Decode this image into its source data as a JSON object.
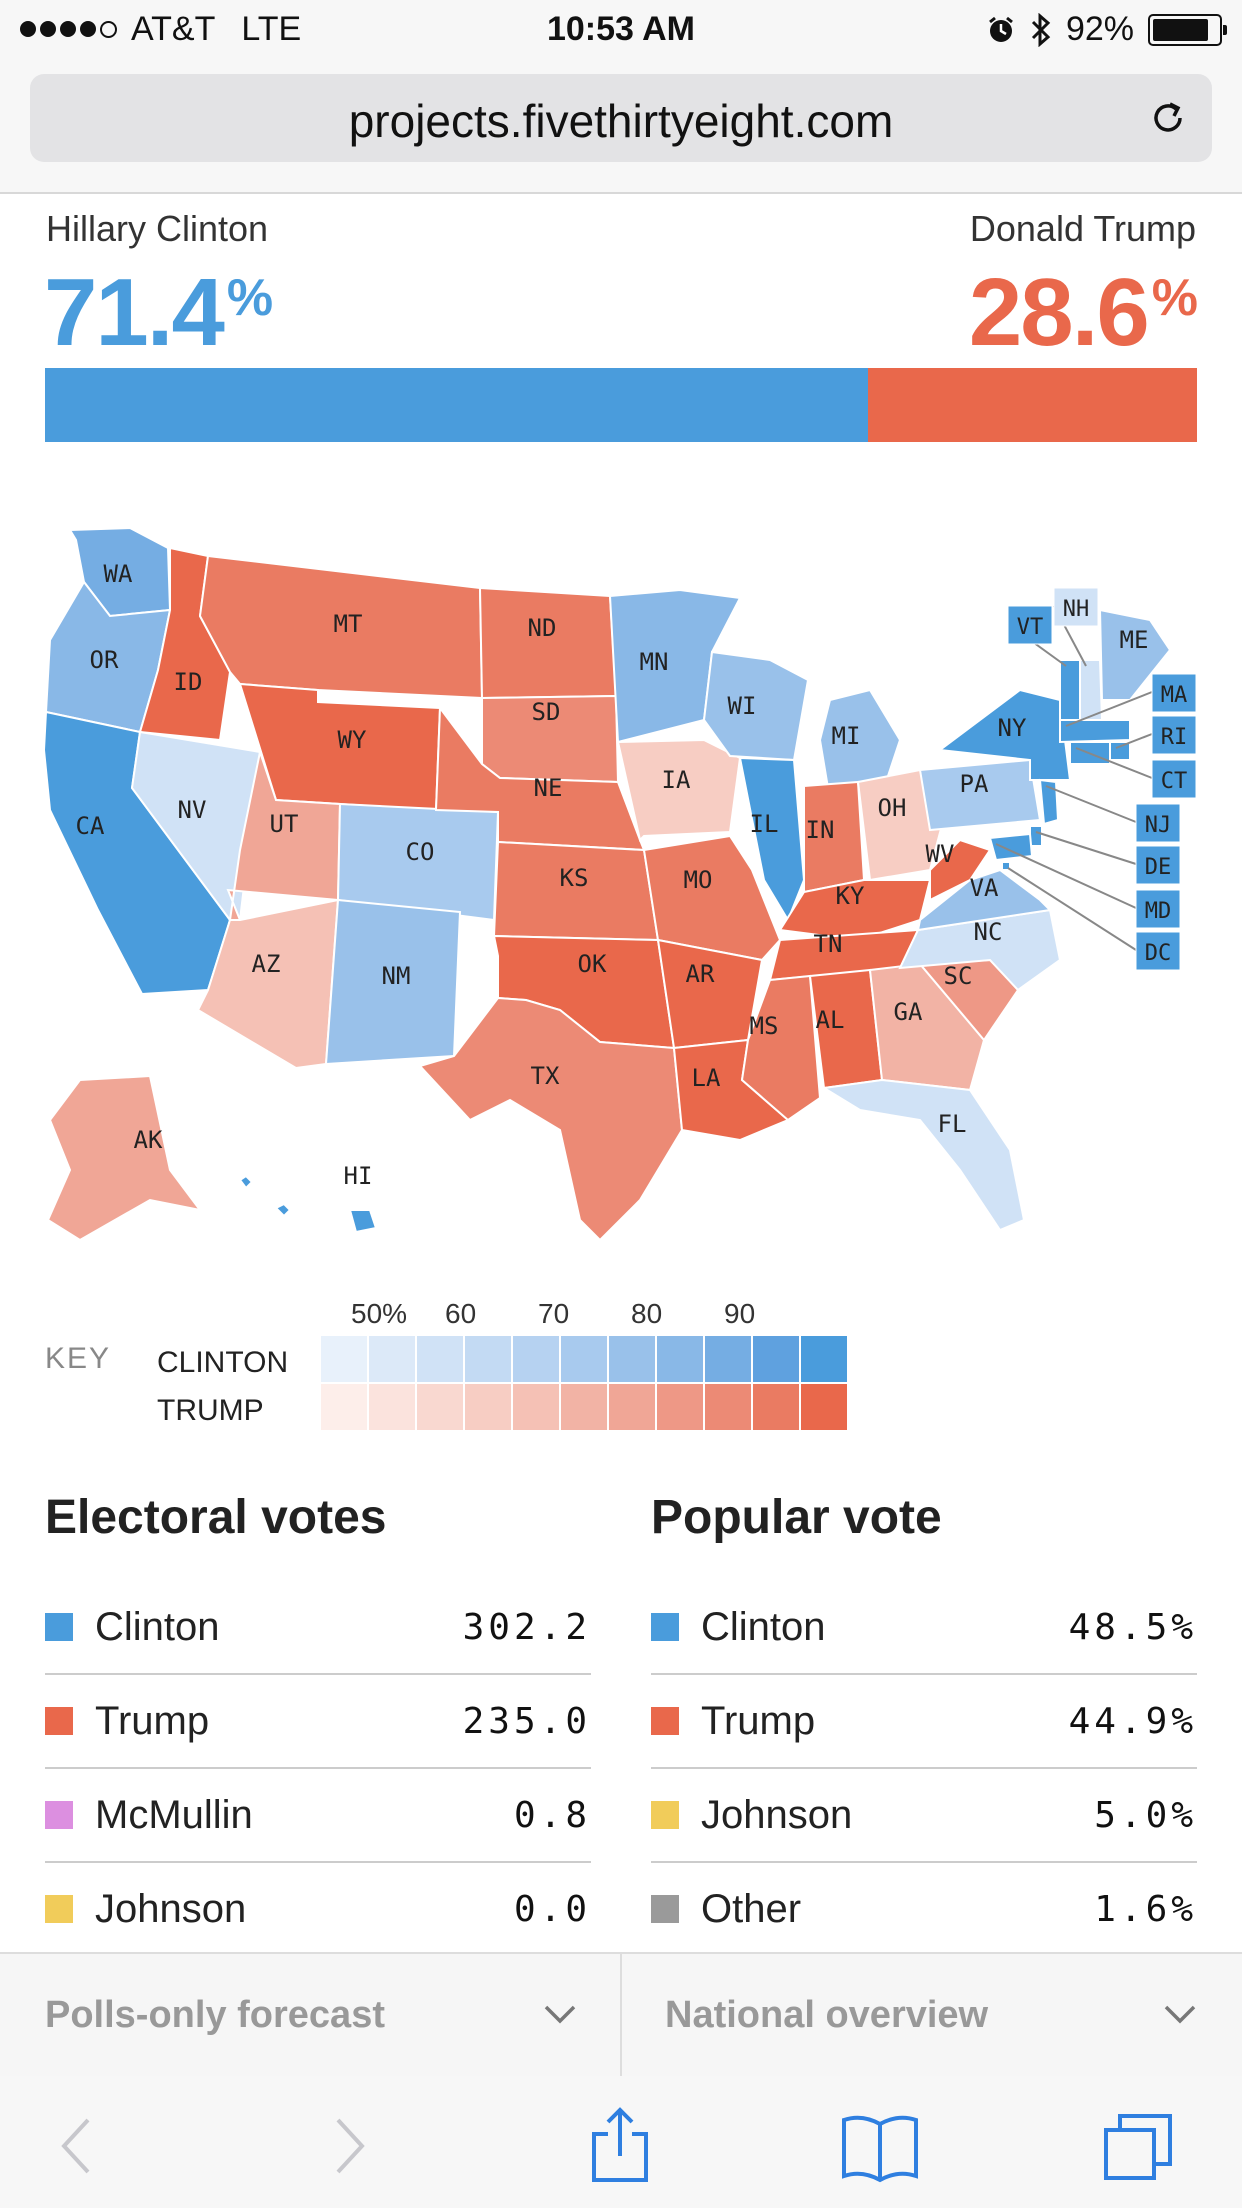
{
  "status_bar": {
    "carrier": "AT&T",
    "network": "LTE",
    "time": "10:53 AM",
    "battery": "92%",
    "battery_level": 0.92,
    "icons": [
      "signal-dots-icon",
      "alarm-icon",
      "bluetooth-icon",
      "battery-icon"
    ]
  },
  "browser": {
    "url": "projects.fivethirtyeight.com",
    "reload_icon": "reload-icon"
  },
  "forecast": {
    "left": {
      "name": "Hillary Clinton",
      "pct": "71.4",
      "pct_symbol": "%",
      "value": 0.714,
      "color": "#4a9cdc"
    },
    "right": {
      "name": "Donald Trump",
      "pct": "28.6",
      "pct_symbol": "%",
      "value": 0.286,
      "color": "#e9684b"
    }
  },
  "map": {
    "states": [
      {
        "abbr": "WA",
        "lean": "D",
        "level": 7
      },
      {
        "abbr": "OR",
        "lean": "D",
        "level": 6
      },
      {
        "abbr": "CA",
        "lean": "D",
        "level": 9
      },
      {
        "abbr": "ID",
        "lean": "R",
        "level": 9
      },
      {
        "abbr": "NV",
        "lean": "D",
        "level": 1
      },
      {
        "abbr": "MT",
        "lean": "R",
        "level": 8
      },
      {
        "abbr": "WY",
        "lean": "R",
        "level": 9
      },
      {
        "abbr": "UT",
        "lean": "R",
        "level": 5
      },
      {
        "abbr": "AZ",
        "lean": "R",
        "level": 3
      },
      {
        "abbr": "CO",
        "lean": "D",
        "level": 4
      },
      {
        "abbr": "NM",
        "lean": "D",
        "level": 5
      },
      {
        "abbr": "ND",
        "lean": "R",
        "level": 8
      },
      {
        "abbr": "SD",
        "lean": "R",
        "level": 7
      },
      {
        "abbr": "NE",
        "lean": "R",
        "level": 8
      },
      {
        "abbr": "KS",
        "lean": "R",
        "level": 8
      },
      {
        "abbr": "OK",
        "lean": "R",
        "level": 9
      },
      {
        "abbr": "TX",
        "lean": "R",
        "level": 7
      },
      {
        "abbr": "MN",
        "lean": "D",
        "level": 6
      },
      {
        "abbr": "IA",
        "lean": "R",
        "level": 2
      },
      {
        "abbr": "MO",
        "lean": "R",
        "level": 8
      },
      {
        "abbr": "AR",
        "lean": "R",
        "level": 9
      },
      {
        "abbr": "LA",
        "lean": "R",
        "level": 9
      },
      {
        "abbr": "WI",
        "lean": "D",
        "level": 5
      },
      {
        "abbr": "IL",
        "lean": "D",
        "level": 9
      },
      {
        "abbr": "MI",
        "lean": "D",
        "level": 5
      },
      {
        "abbr": "IN",
        "lean": "R",
        "level": 8
      },
      {
        "abbr": "OH",
        "lean": "R",
        "level": 2
      },
      {
        "abbr": "KY",
        "lean": "R",
        "level": 9
      },
      {
        "abbr": "TN",
        "lean": "R",
        "level": 9
      },
      {
        "abbr": "MS",
        "lean": "R",
        "level": 8
      },
      {
        "abbr": "AL",
        "lean": "R",
        "level": 9
      },
      {
        "abbr": "GA",
        "lean": "R",
        "level": 4
      },
      {
        "abbr": "FL",
        "lean": "D",
        "level": 1
      },
      {
        "abbr": "SC",
        "lean": "R",
        "level": 6
      },
      {
        "abbr": "NC",
        "lean": "D",
        "level": 1
      },
      {
        "abbr": "VA",
        "lean": "D",
        "level": 5
      },
      {
        "abbr": "WV",
        "lean": "R",
        "level": 9
      },
      {
        "abbr": "PA",
        "lean": "D",
        "level": 4
      },
      {
        "abbr": "NY",
        "lean": "D",
        "level": 9
      },
      {
        "abbr": "VT",
        "lean": "D",
        "level": 9
      },
      {
        "abbr": "NH",
        "lean": "D",
        "level": 1
      },
      {
        "abbr": "ME",
        "lean": "D",
        "level": 5
      },
      {
        "abbr": "MA",
        "lean": "D",
        "level": 9
      },
      {
        "abbr": "RI",
        "lean": "D",
        "level": 9
      },
      {
        "abbr": "CT",
        "lean": "D",
        "level": 9
      },
      {
        "abbr": "NJ",
        "lean": "D",
        "level": 9
      },
      {
        "abbr": "DE",
        "lean": "D",
        "level": 9
      },
      {
        "abbr": "MD",
        "lean": "D",
        "level": 9
      },
      {
        "abbr": "DC",
        "lean": "D",
        "level": 9
      },
      {
        "abbr": "AK",
        "lean": "R",
        "level": 5
      },
      {
        "abbr": "HI",
        "lean": "D",
        "level": 9
      }
    ]
  },
  "key": {
    "label": "KEY",
    "clinton_label": "CLINTON",
    "trump_label": "TRUMP",
    "ticks": [
      "50%",
      "60",
      "70",
      "80",
      "90"
    ],
    "clinton_colors": [
      "#e8f1fb",
      "#dce9f8",
      "#d0e2f6",
      "#c3daf3",
      "#b6d2f1",
      "#a8caee",
      "#99c1ea",
      "#89b8e7",
      "#75ade3",
      "#5fa1df",
      "#4a9cdc"
    ],
    "trump_colors": [
      "#fdeeea",
      "#fbe3dd",
      "#f9d8d0",
      "#f7cdc3",
      "#f5c1b5",
      "#f2b3a5",
      "#f0a696",
      "#ee9886",
      "#ec8a75",
      "#ea7b62",
      "#e9684b"
    ]
  },
  "electoral": {
    "title": "Electoral votes",
    "rows": [
      {
        "name": "Clinton",
        "value": "302.2",
        "color": "#4a9cdc"
      },
      {
        "name": "Trump",
        "value": "235.0",
        "color": "#e9684b"
      },
      {
        "name": "McMullin",
        "value": "0.8",
        "color": "#dc8fe0"
      },
      {
        "name": "Johnson",
        "value": "0.0",
        "color": "#f1cc5a"
      }
    ]
  },
  "popular": {
    "title": "Popular vote",
    "rows": [
      {
        "name": "Clinton",
        "value": "48.5%",
        "color": "#4a9cdc"
      },
      {
        "name": "Trump",
        "value": "44.9%",
        "color": "#e9684b"
      },
      {
        "name": "Johnson",
        "value": "5.0%",
        "color": "#f1cc5a"
      },
      {
        "name": "Other",
        "value": "1.6%",
        "color": "#9a9a9a"
      }
    ]
  },
  "dropdowns": {
    "left": "Polls-only forecast",
    "right": "National overview"
  },
  "toolbar": {
    "icons": [
      "back-icon",
      "forward-icon",
      "share-icon",
      "bookmarks-icon",
      "tabs-icon"
    ]
  }
}
